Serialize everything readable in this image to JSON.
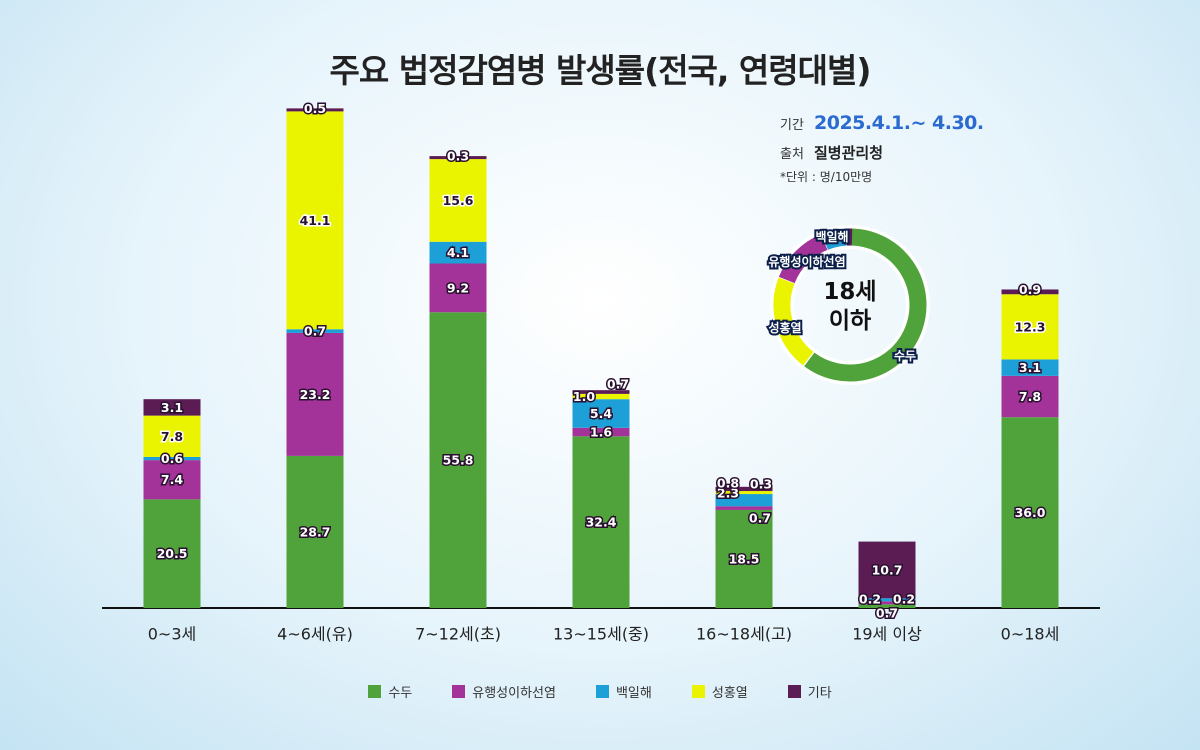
{
  "title": "주요 법정감염병 발생률(전국, 연령대별)",
  "info": {
    "period_label": "기간",
    "period_value": "2025.4.1.~ 4.30.",
    "source_label": "출처",
    "source_value": "질병관리청",
    "unit_note": "*단위 : 명/10만명"
  },
  "colors": {
    "수두": "#4fa33a",
    "유행성이하선염": "#a33299",
    "백일해": "#1da0d8",
    "성홍열": "#eaf400",
    "기타": "#5b1c54"
  },
  "legend": [
    {
      "name": "수두",
      "color": "#4fa33a"
    },
    {
      "name": "유행성이하선염",
      "color": "#a33299"
    },
    {
      "name": "백일해",
      "color": "#1da0d8"
    },
    {
      "name": "성홍열",
      "color": "#eaf400"
    },
    {
      "name": "기타",
      "color": "#5b1c54"
    }
  ],
  "donut": {
    "center_line1": "18세",
    "center_line2": "이하",
    "labels": [
      "백일해",
      "유행성이하선염",
      "성홍열",
      "수두"
    ]
  },
  "chart_data": {
    "type": "bar",
    "stacked": true,
    "title": "주요 법정감염병 발생률(전국, 연령대별)",
    "categories": [
      "0~3세",
      "4~6세(유)",
      "7~12세(초)",
      "13~15세(중)",
      "16~18세(고)",
      "19세 이상",
      "0~18세"
    ],
    "series": [
      {
        "name": "수두",
        "values": [
          20.5,
          28.7,
          55.8,
          32.4,
          18.5,
          0.7,
          36.0
        ]
      },
      {
        "name": "유행성이하선염",
        "values": [
          7.4,
          23.2,
          9.2,
          1.6,
          0.7,
          0.2,
          7.8
        ]
      },
      {
        "name": "백일해",
        "values": [
          0.6,
          0.7,
          4.1,
          5.4,
          2.3,
          0.2,
          3.1
        ]
      },
      {
        "name": "성홍열",
        "values": [
          7.8,
          41.1,
          15.6,
          1.0,
          0.3,
          null,
          12.3
        ]
      },
      {
        "name": "기타",
        "values": [
          3.1,
          0.5,
          0.3,
          0.7,
          0.8,
          10.7,
          0.9
        ]
      }
    ],
    "legend_position": "bottom",
    "grid": false
  }
}
